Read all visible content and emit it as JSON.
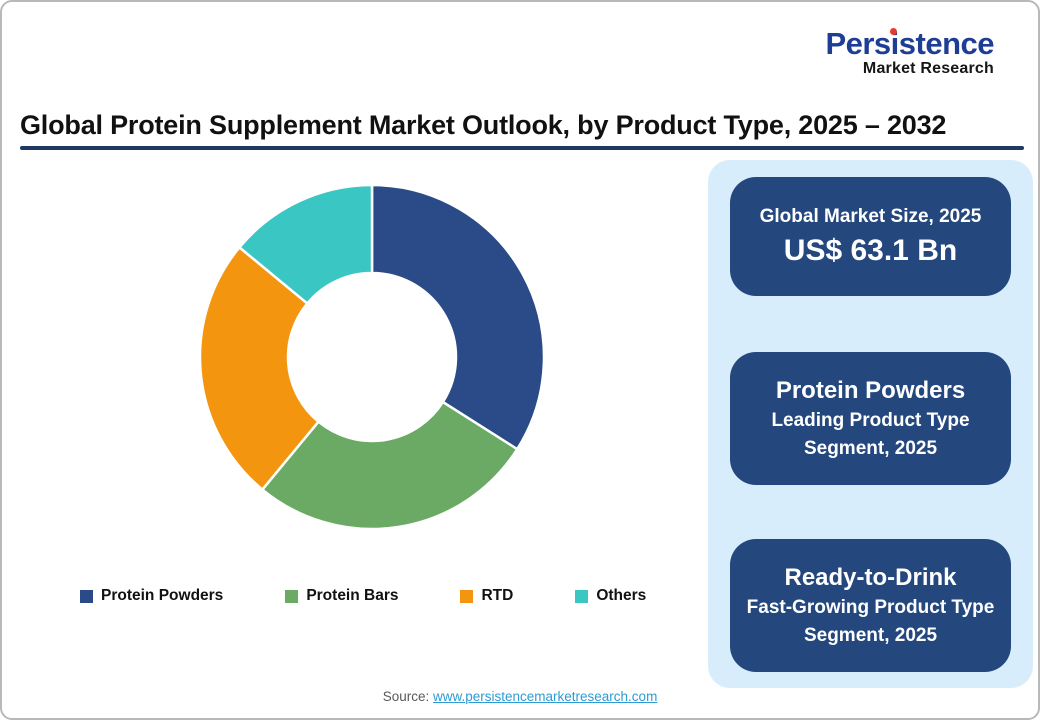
{
  "logo": {
    "name": "Persistence",
    "subtitle": "Market Research",
    "name_color": "#1e3e96",
    "dot_color": "#e23b30"
  },
  "header": {
    "title": "Global Protein Supplement Market Outlook, by Product Type, 2025 – 2032",
    "underline_color": "#1f3864"
  },
  "chart_data": {
    "type": "pie",
    "variant": "donut",
    "title": "Global Protein Supplement Market Outlook, by Product Type, 2025 – 2032",
    "start_angle_deg": 0,
    "direction": "clockwise",
    "inner_radius_ratio": 0.49,
    "values_unit": "percent share (estimated from arc angles)",
    "segments": [
      {
        "label": "Protein Powders",
        "value": 34,
        "color": "#2a4b87"
      },
      {
        "label": "Protein Bars",
        "value": 27,
        "color": "#6baa64"
      },
      {
        "label": "RTD",
        "value": 25,
        "color": "#f3950f"
      },
      {
        "label": "Others",
        "value": 14,
        "color": "#3ac6c3"
      }
    ],
    "legend_position": "bottom"
  },
  "sidebar": {
    "panel_color": "#d8edfb",
    "card_color": "#24477e",
    "cards": [
      {
        "line1": "Global Market Size, 2025",
        "line2": "US$ 63.1 Bn"
      },
      {
        "line1": "Protein Powders",
        "line2": "Leading Product Type Segment, 2025"
      },
      {
        "line1": "Ready-to-Drink",
        "line2": "Fast-Growing Product Type Segment, 2025"
      }
    ]
  },
  "footer": {
    "source_label": "Source:",
    "source_link": "www.persistencemarketresearch.com"
  }
}
